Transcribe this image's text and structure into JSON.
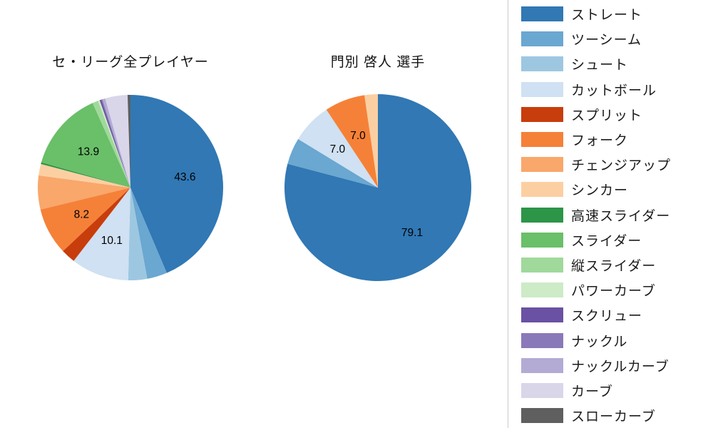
{
  "page": {
    "background": "#ffffff"
  },
  "pitch_types": [
    {
      "key": "straight",
      "label": "ストレート",
      "color": "#3178b4"
    },
    {
      "key": "two-seam",
      "label": "ツーシーム",
      "color": "#6aa7d1"
    },
    {
      "key": "shoot",
      "label": "シュート",
      "color": "#9dc7e0"
    },
    {
      "key": "cut-ball",
      "label": "カットボール",
      "color": "#cfe1f2"
    },
    {
      "key": "split",
      "label": "スプリット",
      "color": "#c83d0c"
    },
    {
      "key": "fork",
      "label": "フォーク",
      "color": "#f58138"
    },
    {
      "key": "changeup",
      "label": "チェンジアップ",
      "color": "#f9a76b"
    },
    {
      "key": "sinker",
      "label": "シンカー",
      "color": "#fccfa2"
    },
    {
      "key": "fast-slider",
      "label": "高速スライダー",
      "color": "#2c9547"
    },
    {
      "key": "slider",
      "label": "スライダー",
      "color": "#6abf69"
    },
    {
      "key": "vertical-slider",
      "label": "縦スライダー",
      "color": "#a0d99b"
    },
    {
      "key": "power-curve",
      "label": "パワーカーブ",
      "color": "#cdebc7"
    },
    {
      "key": "screw",
      "label": "スクリュー",
      "color": "#6a51a3"
    },
    {
      "key": "knuckle",
      "label": "ナックル",
      "color": "#8a79b8"
    },
    {
      "key": "knuckle-curve",
      "label": "ナックルカーブ",
      "color": "#b3abd4"
    },
    {
      "key": "curve",
      "label": "カーブ",
      "color": "#d9d6ea"
    },
    {
      "key": "slow-curve",
      "label": "スローカーブ",
      "color": "#5f5f5f"
    }
  ],
  "chart_data": [
    {
      "type": "pie",
      "title": "セ・リーグ全プレイヤー",
      "unit": "%",
      "direction": "clockwise-from-top",
      "label_min": 7.0,
      "categories": [
        "ストレート",
        "ツーシーム",
        "シュート",
        "カットボール",
        "スプリット",
        "フォーク",
        "チェンジアップ",
        "シンカー",
        "高速スライダー",
        "スライダー",
        "縦スライダー",
        "パワーカーブ",
        "スクリュー",
        "ナックル",
        "ナックルカーブ",
        "カーブ",
        "スローカーブ"
      ],
      "values": [
        43.6,
        3.5,
        3.3,
        10.1,
        2.5,
        8.2,
        5.9,
        2.0,
        0.3,
        13.9,
        1.0,
        0.3,
        0.3,
        0.2,
        0.5,
        3.9,
        0.5
      ],
      "shown_value_labels": [
        "43.6",
        "10.1",
        "8.2",
        "13.9"
      ]
    },
    {
      "type": "pie",
      "title": "門別 啓人  選手",
      "unit": "%",
      "direction": "clockwise-from-top",
      "label_min": 7.0,
      "categories": [
        "ストレート",
        "ツーシーム",
        "シュート",
        "カットボール",
        "スプリット",
        "フォーク",
        "チェンジアップ",
        "シンカー",
        "高速スライダー",
        "スライダー",
        "縦スライダー",
        "パワーカーブ",
        "スクリュー",
        "ナックル",
        "ナックルカーブ",
        "カーブ",
        "スローカーブ"
      ],
      "values": [
        79.1,
        4.6,
        0,
        7.0,
        0,
        7.0,
        0,
        2.3,
        0,
        0,
        0,
        0,
        0,
        0,
        0,
        0,
        0
      ],
      "shown_value_labels": [
        "79.1",
        "7.0",
        "7.0"
      ]
    }
  ],
  "legend": {
    "position": "right"
  }
}
